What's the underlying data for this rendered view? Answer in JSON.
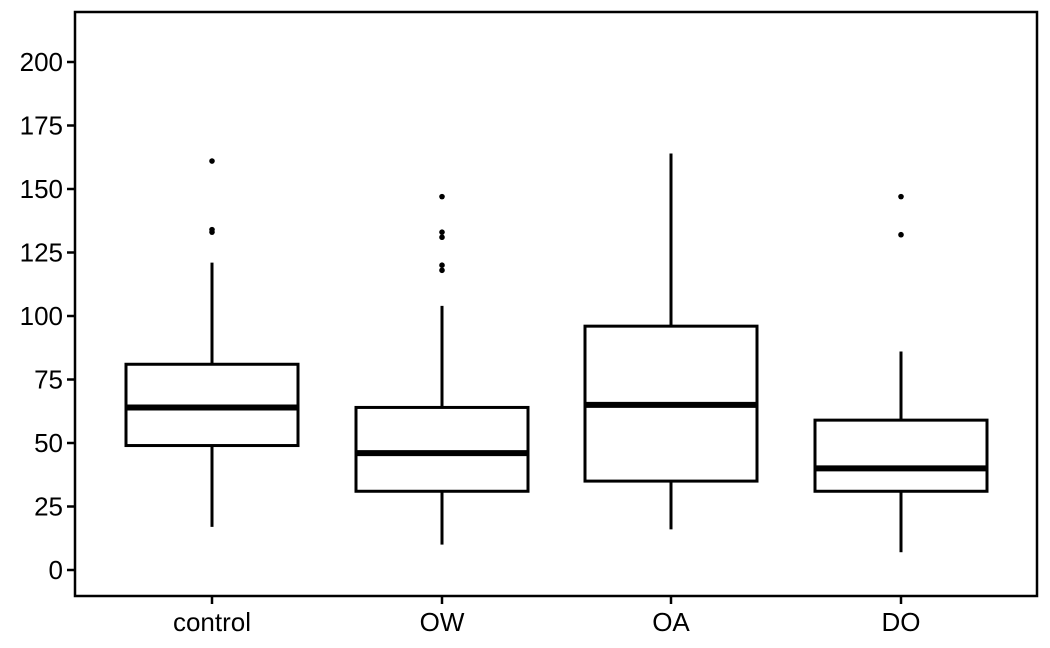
{
  "chart_data": {
    "type": "boxplot",
    "title": "",
    "xlabel": "",
    "ylabel": "",
    "ylim": [
      -10,
      220
    ],
    "yticks": [
      0,
      25,
      50,
      75,
      100,
      125,
      150,
      175,
      200
    ],
    "ytick_labels": [
      "0",
      "25",
      "50",
      "75",
      "100",
      "125",
      "150",
      "175",
      "200"
    ],
    "grid": false,
    "categories": [
      "control",
      "OW",
      "OA",
      "DO"
    ],
    "boxes": [
      {
        "category": "control",
        "whisker_low": 17,
        "q1": 49,
        "median": 64,
        "q3": 81,
        "whisker_high": 121,
        "outliers": [
          133,
          134,
          161
        ]
      },
      {
        "category": "OW",
        "whisker_low": 10,
        "q1": 31,
        "median": 46,
        "q3": 64,
        "whisker_high": 104,
        "outliers": [
          118,
          120,
          131,
          133,
          147
        ]
      },
      {
        "category": "OA",
        "whisker_low": 16,
        "q1": 35,
        "median": 65,
        "q3": 96,
        "whisker_high": 164,
        "outliers": []
      },
      {
        "category": "DO",
        "whisker_low": 7,
        "q1": 31,
        "median": 40,
        "q3": 59,
        "whisker_high": 86,
        "outliers": [
          132,
          147
        ]
      }
    ]
  }
}
